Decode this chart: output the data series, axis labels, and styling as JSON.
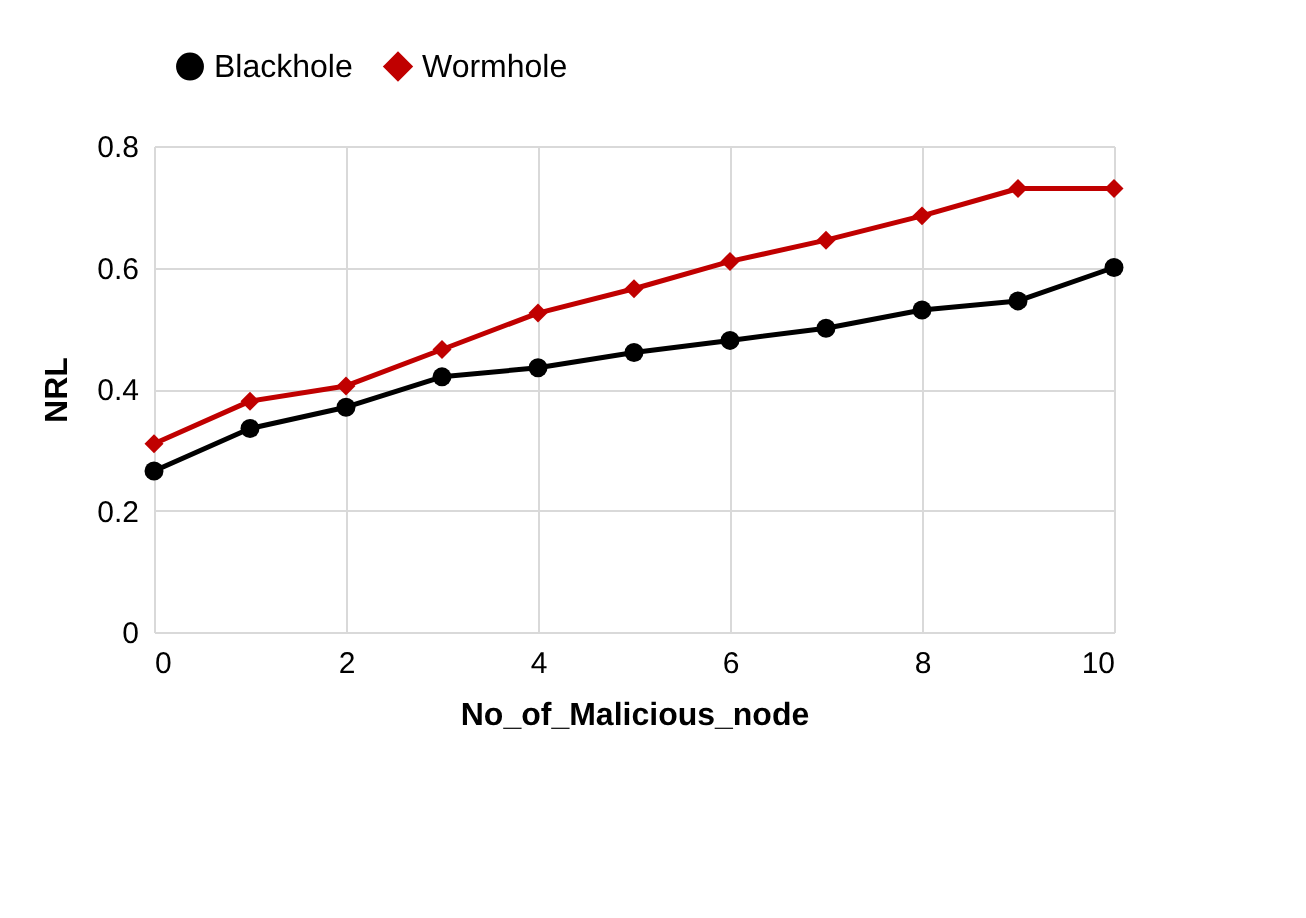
{
  "chart_data": {
    "type": "line",
    "xlabel": "No_of_Malicious_node",
    "ylabel": "NRL",
    "x": [
      0,
      1,
      2,
      3,
      4,
      5,
      6,
      7,
      8,
      9,
      10
    ],
    "series": [
      {
        "name": "Blackhole",
        "color": "#000000",
        "marker": "circle",
        "values": [
          0.265,
          0.335,
          0.37,
          0.42,
          0.435,
          0.46,
          0.48,
          0.5,
          0.53,
          0.545,
          0.6
        ]
      },
      {
        "name": "Wormhole",
        "color": "#c00000",
        "marker": "diamond",
        "values": [
          0.31,
          0.38,
          0.405,
          0.465,
          0.525,
          0.565,
          0.61,
          0.645,
          0.685,
          0.73,
          0.73
        ]
      }
    ],
    "xlim": [
      0,
      10
    ],
    "xticks": [
      0,
      2,
      4,
      6,
      8,
      10
    ],
    "ylim": [
      0,
      0.8
    ],
    "yticks": [
      0,
      0.2,
      0.4,
      0.6,
      0.8
    ],
    "grid": true,
    "legend": "top",
    "line_style": "solid"
  }
}
